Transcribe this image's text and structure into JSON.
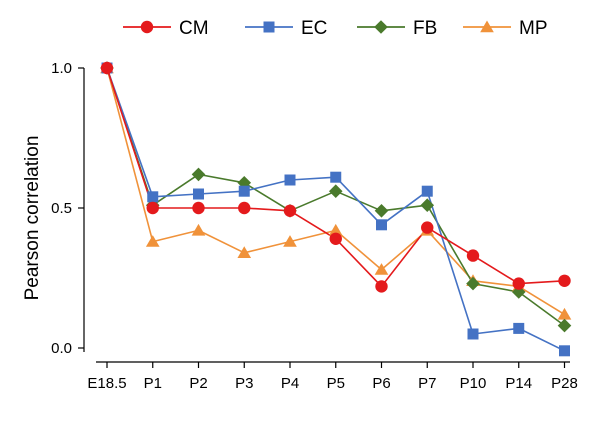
{
  "chart_data": {
    "type": "line",
    "categories": [
      "E18.5",
      "P1",
      "P2",
      "P3",
      "P4",
      "P5",
      "P6",
      "P7",
      "P10",
      "P14",
      "P28"
    ],
    "ylabel": "Pearson correlation",
    "xlabel": "",
    "ylim": [
      0.0,
      1.0
    ],
    "yticks": [
      "0.0",
      "0.5",
      "1.0"
    ],
    "grid": false,
    "legend_position": "top",
    "series": [
      {
        "name": "CM",
        "color": "#e41a1c",
        "marker": "circle",
        "values": [
          1.0,
          0.5,
          0.5,
          0.5,
          0.49,
          0.39,
          0.22,
          0.43,
          0.33,
          0.23,
          0.24
        ]
      },
      {
        "name": "EC",
        "color": "#4472c4",
        "marker": "square",
        "values": [
          1.0,
          0.54,
          0.55,
          0.56,
          0.6,
          0.61,
          0.44,
          0.56,
          0.05,
          0.07,
          -0.01
        ]
      },
      {
        "name": "FB",
        "color": "#4a7a2c",
        "marker": "diamond",
        "values": [
          1.0,
          0.51,
          0.62,
          0.59,
          0.49,
          0.56,
          0.49,
          0.51,
          0.23,
          0.2,
          0.08
        ]
      },
      {
        "name": "MP",
        "color": "#f0923a",
        "marker": "triangle",
        "values": [
          1.0,
          0.38,
          0.42,
          0.34,
          0.38,
          0.42,
          0.28,
          0.42,
          0.24,
          0.22,
          0.12
        ]
      }
    ]
  }
}
